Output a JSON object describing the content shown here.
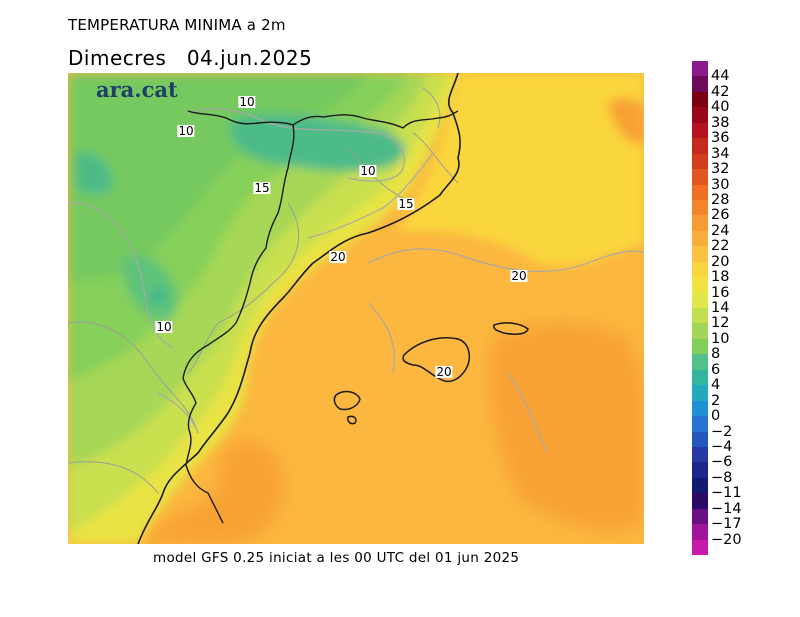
{
  "header": {
    "title": "TEMPERATURA MINIMA a 2m",
    "day": "Dimecres",
    "date": "04.jun.2025"
  },
  "map": {
    "logo": "ara.cat",
    "contour_labels": [
      "10",
      "10",
      "10",
      "15",
      "15",
      "20",
      "20",
      "10",
      "20"
    ],
    "land_color": "#7fcf5a",
    "sea_color": "#fbb73f"
  },
  "footer": {
    "text": "model GFS 0.25 iniciat a les 00 UTC del 01 jun 2025"
  },
  "legend": {
    "labels": [
      "44",
      "42",
      "40",
      "38",
      "36",
      "34",
      "32",
      "30",
      "28",
      "26",
      "24",
      "22",
      "20",
      "18",
      "16",
      "14",
      "12",
      "10",
      "8",
      "6",
      "4",
      "2",
      "0",
      "−2",
      "−4",
      "−6",
      "−8",
      "−11",
      "−14",
      "−17",
      "−20"
    ],
    "colors": [
      "#8c1a8c",
      "#6e0a5a",
      "#7c0012",
      "#99061a",
      "#b4131f",
      "#c62a1f",
      "#d33e1c",
      "#e35622",
      "#ee6e24",
      "#f4842c",
      "#f79a34",
      "#f9ad3b",
      "#fbc140",
      "#fad63e",
      "#f0e23f",
      "#dfe74a",
      "#c2df50",
      "#a3d657",
      "#7fcf5a",
      "#53c08a",
      "#33b69b",
      "#22a9bd",
      "#1f8fd6",
      "#2273d4",
      "#2457bd",
      "#263aa4",
      "#1d268a",
      "#111a6e",
      "#2a0c66",
      "#6a0f82",
      "#a0139a",
      "#c819a8"
    ]
  }
}
